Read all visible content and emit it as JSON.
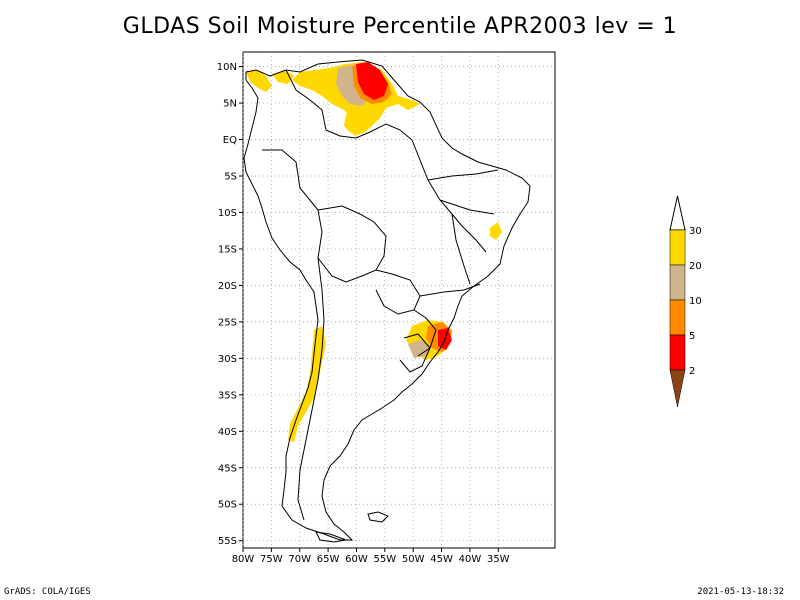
{
  "title": "GLDAS Soil Moisture Percentile APR2003 lev = 1",
  "footer": {
    "left": "GrADS: COLA/IGES",
    "right": "2021-05-13-18:32"
  },
  "map": {
    "lon_range": [
      -80,
      -25
    ],
    "lat_range": [
      -56,
      12
    ],
    "lon_ticks": [
      {
        "v": -80,
        "label": "80W"
      },
      {
        "v": -75,
        "label": "75W"
      },
      {
        "v": -70,
        "label": "70W"
      },
      {
        "v": -65,
        "label": "65W"
      },
      {
        "v": -60,
        "label": "60W"
      },
      {
        "v": -55,
        "label": "55W"
      },
      {
        "v": -50,
        "label": "50W"
      },
      {
        "v": -45,
        "label": "45W"
      },
      {
        "v": -40,
        "label": "40W"
      },
      {
        "v": -35,
        "label": "35W"
      }
    ],
    "lat_ticks": [
      {
        "v": 10,
        "label": "10N"
      },
      {
        "v": 5,
        "label": "5N"
      },
      {
        "v": 0,
        "label": "EQ"
      },
      {
        "v": -5,
        "label": "5S"
      },
      {
        "v": -10,
        "label": "10S"
      },
      {
        "v": -15,
        "label": "15S"
      },
      {
        "v": -20,
        "label": "20S"
      },
      {
        "v": -25,
        "label": "25S"
      },
      {
        "v": -30,
        "label": "30S"
      },
      {
        "v": -35,
        "label": "35S"
      },
      {
        "v": -40,
        "label": "40S"
      },
      {
        "v": -45,
        "label": "45S"
      },
      {
        "v": -50,
        "label": "50S"
      },
      {
        "v": -55,
        "label": "55S"
      }
    ],
    "grid": true
  },
  "legend": {
    "bins": [
      {
        "color": "#ffd800",
        "label": "30"
      },
      {
        "color": "#d2b48c",
        "label": "20"
      },
      {
        "color": "#ff8c00",
        "label": "10"
      },
      {
        "color": "#ff0000",
        "label": "5"
      },
      {
        "color": "#8b4513",
        "label": "2"
      }
    ],
    "top_color": "#ffffff"
  },
  "colors": {
    "yellow": "#ffd800",
    "tan": "#d2b48c",
    "orange": "#ff8c00",
    "red": "#ff0000"
  }
}
